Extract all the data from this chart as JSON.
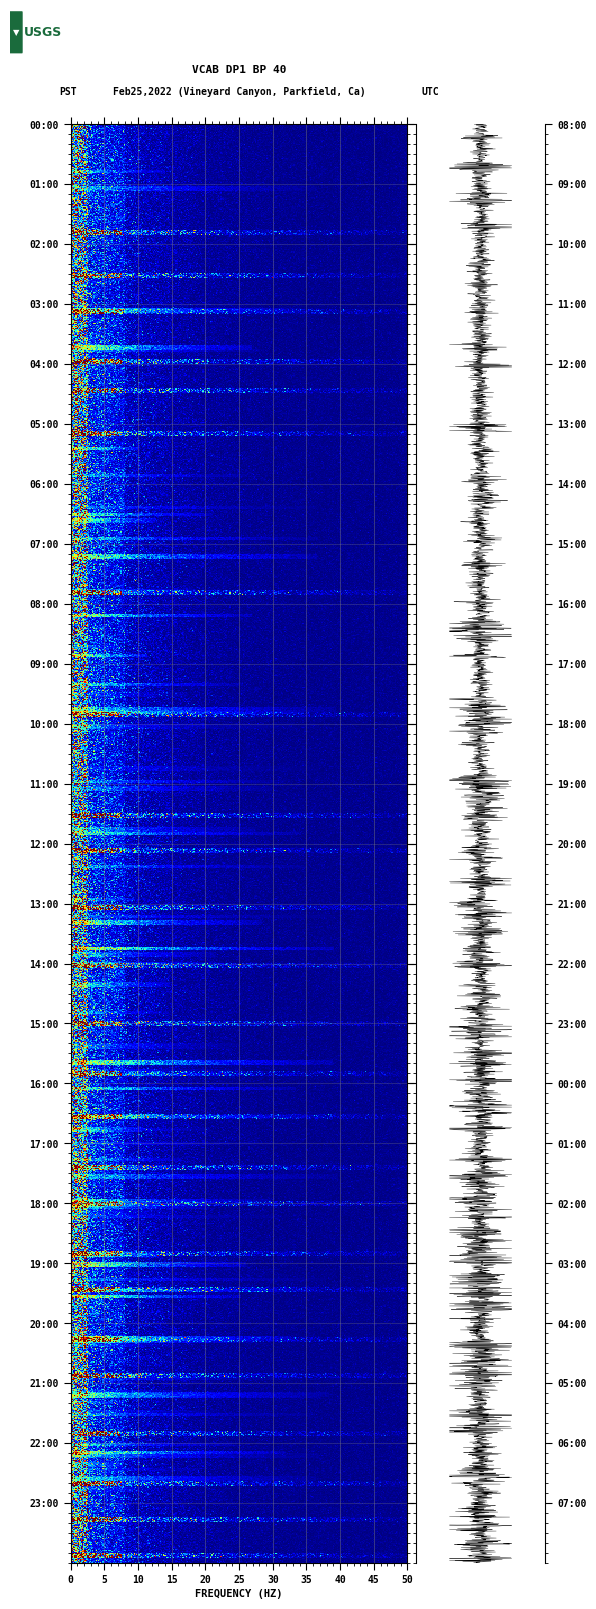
{
  "title_line1": "VCAB DP1 BP 40",
  "title_line2_pst": "PST",
  "title_line2_date": "Feb25,2022 (Vineyard Canyon, Parkfield, Ca)",
  "title_line2_utc": "UTC",
  "xlabel": "FREQUENCY (HZ)",
  "xticks": [
    0,
    5,
    10,
    15,
    20,
    25,
    30,
    35,
    40,
    45,
    50
  ],
  "xlim": [
    0,
    50
  ],
  "freq_min": 0,
  "freq_max": 50,
  "pst_labels": [
    "00:00",
    "01:00",
    "02:00",
    "03:00",
    "04:00",
    "05:00",
    "06:00",
    "07:00",
    "08:00",
    "09:00",
    "10:00",
    "11:00",
    "12:00",
    "13:00",
    "14:00",
    "15:00",
    "16:00",
    "17:00",
    "18:00",
    "19:00",
    "20:00",
    "21:00",
    "22:00",
    "23:00"
  ],
  "utc_labels": [
    "08:00",
    "09:00",
    "10:00",
    "11:00",
    "12:00",
    "13:00",
    "14:00",
    "15:00",
    "16:00",
    "17:00",
    "18:00",
    "19:00",
    "20:00",
    "21:00",
    "22:00",
    "23:00",
    "00:00",
    "01:00",
    "02:00",
    "03:00",
    "04:00",
    "05:00",
    "06:00",
    "07:00"
  ],
  "bg_color": "#ffffff",
  "usgs_green": "#1a6b3c",
  "colormap": "jet",
  "noise_seed": 42,
  "n_freq_bins": 300,
  "n_time_bins": 1440,
  "font_family": "monospace",
  "grid_color": "#808080",
  "grid_alpha": 0.5,
  "vgrid_freqs": [
    5,
    10,
    15,
    20,
    25,
    30,
    35,
    40,
    45
  ]
}
